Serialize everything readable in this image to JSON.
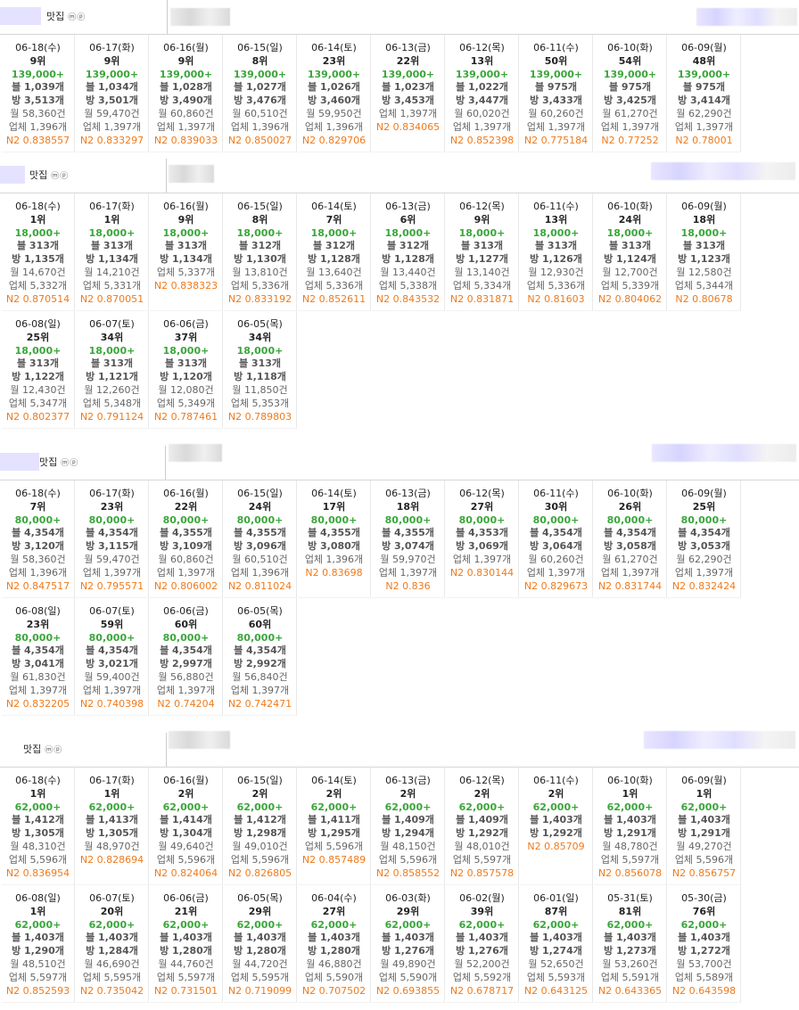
{
  "label_mark": "ⓜⓟ",
  "sections": [
    {
      "name": "맛집",
      "rows": [
        [
          {
            "d": "06-18(수)",
            "r": "9위",
            "p": "139,000+",
            "b": "블 1,039개",
            "v": "방 3,513개",
            "w": "월 58,360건",
            "u": "업체 1,396개",
            "n": "N2 0.838557"
          },
          {
            "d": "06-17(화)",
            "r": "9위",
            "p": "139,000+",
            "b": "블 1,034개",
            "v": "방 3,501개",
            "w": "월 59,470건",
            "u": "업체 1,397개",
            "n": "N2 0.833297"
          },
          {
            "d": "06-16(월)",
            "r": "9위",
            "p": "139,000+",
            "b": "블 1,028개",
            "v": "방 3,490개",
            "w": "월 60,860건",
            "u": "업체 1,397개",
            "n": "N2 0.839033"
          },
          {
            "d": "06-15(일)",
            "r": "8위",
            "p": "139,000+",
            "b": "블 1,027개",
            "v": "방 3,476개",
            "w": "월 60,510건",
            "u": "업체 1,396개",
            "n": "N2 0.850027"
          },
          {
            "d": "06-14(토)",
            "r": "23위",
            "p": "139,000+",
            "b": "블 1,026개",
            "v": "방 3,460개",
            "w": "월 59,950건",
            "u": "업체 1,396개",
            "n": "N2 0.829706"
          },
          {
            "d": "06-13(금)",
            "r": "22위",
            "p": "139,000+",
            "b": "블 1,023개",
            "v": "방 3,453개",
            "w": "업체 1,397개",
            "u": "N2 0.834065",
            "n": ""
          },
          {
            "d": "06-12(목)",
            "r": "13위",
            "p": "139,000+",
            "b": "블 1,022개",
            "v": "방 3,447개",
            "w": "월 60,020건",
            "u": "업체 1,397개",
            "n": "N2 0.852398"
          },
          {
            "d": "06-11(수)",
            "r": "50위",
            "p": "139,000+",
            "b": "블 975개",
            "v": "방 3,433개",
            "w": "월 60,260건",
            "u": "업체 1,397개",
            "n": "N2 0.775184"
          },
          {
            "d": "06-10(화)",
            "r": "54위",
            "p": "139,000+",
            "b": "블 975개",
            "v": "방 3,425개",
            "w": "월 61,270건",
            "u": "업체 1,397개",
            "n": "N2 0.77252"
          },
          {
            "d": "06-09(월)",
            "r": "48위",
            "p": "139,000+",
            "b": "블 975개",
            "v": "방 3,414개",
            "w": "월 62,290건",
            "u": "업체 1,397개",
            "n": "N2 0.78001"
          }
        ]
      ]
    },
    {
      "name": "맛집",
      "rows": [
        [
          {
            "d": "06-18(수)",
            "r": "1위",
            "p": "18,000+",
            "b": "블 313개",
            "v": "방 1,135개",
            "w": "월 14,670건",
            "u": "업체 5,332개",
            "n": "N2 0.870514"
          },
          {
            "d": "06-17(화)",
            "r": "1위",
            "p": "18,000+",
            "b": "블 313개",
            "v": "방 1,134개",
            "w": "월 14,210건",
            "u": "업체 5,331개",
            "n": "N2 0.870051"
          },
          {
            "d": "06-16(월)",
            "r": "9위",
            "p": "18,000+",
            "b": "블 313개",
            "v": "방 1,134개",
            "w": "업체 5,337개",
            "u": "N2 0.838323",
            "n": ""
          },
          {
            "d": "06-15(일)",
            "r": "8위",
            "p": "18,000+",
            "b": "블 312개",
            "v": "방 1,130개",
            "w": "월 13,810건",
            "u": "업체 5,336개",
            "n": "N2 0.833192"
          },
          {
            "d": "06-14(토)",
            "r": "7위",
            "p": "18,000+",
            "b": "블 312개",
            "v": "방 1,128개",
            "w": "월 13,640건",
            "u": "업체 5,336개",
            "n": "N2 0.852611"
          },
          {
            "d": "06-13(금)",
            "r": "6위",
            "p": "18,000+",
            "b": "블 312개",
            "v": "방 1,128개",
            "w": "월 13,440건",
            "u": "업체 5,338개",
            "n": "N2 0.843532"
          },
          {
            "d": "06-12(목)",
            "r": "9위",
            "p": "18,000+",
            "b": "블 313개",
            "v": "방 1,127개",
            "w": "월 13,140건",
            "u": "업체 5,334개",
            "n": "N2 0.831871"
          },
          {
            "d": "06-11(수)",
            "r": "13위",
            "p": "18,000+",
            "b": "블 313개",
            "v": "방 1,126개",
            "w": "월 12,930건",
            "u": "업체 5,336개",
            "n": "N2 0.81603"
          },
          {
            "d": "06-10(화)",
            "r": "24위",
            "p": "18,000+",
            "b": "블 313개",
            "v": "방 1,124개",
            "w": "월 12,700건",
            "u": "업체 5,339개",
            "n": "N2 0.804062"
          },
          {
            "d": "06-09(월)",
            "r": "18위",
            "p": "18,000+",
            "b": "블 313개",
            "v": "방 1,123개",
            "w": "월 12,580건",
            "u": "업체 5,344개",
            "n": "N2 0.80678"
          }
        ],
        [
          {
            "d": "06-08(일)",
            "r": "25위",
            "p": "18,000+",
            "b": "블 313개",
            "v": "방 1,122개",
            "w": "월 12,430건",
            "u": "업체 5,347개",
            "n": "N2 0.802377"
          },
          {
            "d": "06-07(토)",
            "r": "34위",
            "p": "18,000+",
            "b": "블 313개",
            "v": "방 1,121개",
            "w": "월 12,260건",
            "u": "업체 5,348개",
            "n": "N2 0.791124"
          },
          {
            "d": "06-06(금)",
            "r": "37위",
            "p": "18,000+",
            "b": "블 313개",
            "v": "방 1,120개",
            "w": "월 12,080건",
            "u": "업체 5,349개",
            "n": "N2 0.787461"
          },
          {
            "d": "06-05(목)",
            "r": "34위",
            "p": "18,000+",
            "b": "블 313개",
            "v": "방 1,118개",
            "w": "월 11,850건",
            "u": "업체 5,353개",
            "n": "N2 0.789803"
          }
        ]
      ]
    },
    {
      "name": "맛집",
      "rows": [
        [
          {
            "d": "06-18(수)",
            "r": "7위",
            "p": "80,000+",
            "b": "블 4,354개",
            "v": "방 3,120개",
            "w": "월 58,360건",
            "u": "업체 1,396개",
            "n": "N2 0.847517"
          },
          {
            "d": "06-17(화)",
            "r": "23위",
            "p": "80,000+",
            "b": "블 4,354개",
            "v": "방 3,115개",
            "w": "월 59,470건",
            "u": "업체 1,397개",
            "n": "N2 0.795571"
          },
          {
            "d": "06-16(월)",
            "r": "22위",
            "p": "80,000+",
            "b": "블 4,355개",
            "v": "방 3,109개",
            "w": "월 60,860건",
            "u": "업체 1,397개",
            "n": "N2 0.806002"
          },
          {
            "d": "06-15(일)",
            "r": "24위",
            "p": "80,000+",
            "b": "블 4,355개",
            "v": "방 3,096개",
            "w": "월 60,510건",
            "u": "업체 1,396개",
            "n": "N2 0.811024"
          },
          {
            "d": "06-14(토)",
            "r": "17위",
            "p": "80,000+",
            "b": "블 4,355개",
            "v": "방 3,080개",
            "w": "업체 1,396개",
            "u": "N2 0.83698",
            "n": ""
          },
          {
            "d": "06-13(금)",
            "r": "18위",
            "p": "80,000+",
            "b": "블 4,355개",
            "v": "방 3,074개",
            "w": "월 59,970건",
            "u": "업체 1,397개",
            "n": "N2 0.836"
          },
          {
            "d": "06-12(목)",
            "r": "27위",
            "p": "80,000+",
            "b": "블 4,353개",
            "v": "방 3,069개",
            "w": "업체 1,397개",
            "u": "N2 0.830144",
            "n": ""
          },
          {
            "d": "06-11(수)",
            "r": "30위",
            "p": "80,000+",
            "b": "블 4,354개",
            "v": "방 3,064개",
            "w": "월 60,260건",
            "u": "업체 1,397개",
            "n": "N2 0.829673"
          },
          {
            "d": "06-10(화)",
            "r": "26위",
            "p": "80,000+",
            "b": "블 4,354개",
            "v": "방 3,058개",
            "w": "월 61,270건",
            "u": "업체 1,397개",
            "n": "N2 0.831744"
          },
          {
            "d": "06-09(월)",
            "r": "25위",
            "p": "80,000+",
            "b": "블 4,354개",
            "v": "방 3,053개",
            "w": "월 62,290건",
            "u": "업체 1,397개",
            "n": "N2 0.832424"
          }
        ],
        [
          {
            "d": "06-08(일)",
            "r": "23위",
            "p": "80,000+",
            "b": "블 4,354개",
            "v": "방 3,041개",
            "w": "월 61,830건",
            "u": "업체 1,397개",
            "n": "N2 0.832205"
          },
          {
            "d": "06-07(토)",
            "r": "59위",
            "p": "80,000+",
            "b": "블 4,354개",
            "v": "방 3,021개",
            "w": "월 59,400건",
            "u": "업체 1,397개",
            "n": "N2 0.740398"
          },
          {
            "d": "06-06(금)",
            "r": "60위",
            "p": "80,000+",
            "b": "블 4,354개",
            "v": "방 2,997개",
            "w": "월 56,880건",
            "u": "업체 1,397개",
            "n": "N2 0.74204"
          },
          {
            "d": "06-05(목)",
            "r": "60위",
            "p": "80,000+",
            "b": "블 4,354개",
            "v": "방 2,992개",
            "w": "월 56,840건",
            "u": "업체 1,397개",
            "n": "N2 0.742471"
          }
        ]
      ]
    },
    {
      "name": "맛집",
      "rows": [
        [
          {
            "d": "06-18(수)",
            "r": "1위",
            "p": "62,000+",
            "b": "블 1,412개",
            "v": "방 1,305개",
            "w": "월 48,310건",
            "u": "업체 5,596개",
            "n": "N2 0.836954"
          },
          {
            "d": "06-17(화)",
            "r": "1위",
            "p": "62,000+",
            "b": "블 1,413개",
            "v": "방 1,305개",
            "w": "월 48,970건",
            "u": "N2 0.828694",
            "n": ""
          },
          {
            "d": "06-16(월)",
            "r": "2위",
            "p": "62,000+",
            "b": "블 1,414개",
            "v": "방 1,304개",
            "w": "월 49,640건",
            "u": "업체 5,596개",
            "n": "N2 0.824064"
          },
          {
            "d": "06-15(일)",
            "r": "2위",
            "p": "62,000+",
            "b": "블 1,412개",
            "v": "방 1,298개",
            "w": "월 49,010건",
            "u": "업체 5,596개",
            "n": "N2 0.826805"
          },
          {
            "d": "06-14(토)",
            "r": "2위",
            "p": "62,000+",
            "b": "블 1,411개",
            "v": "방 1,295개",
            "w": "업체 5,596개",
            "u": "N2 0.857489",
            "n": ""
          },
          {
            "d": "06-13(금)",
            "r": "2위",
            "p": "62,000+",
            "b": "블 1,409개",
            "v": "방 1,294개",
            "w": "월 48,150건",
            "u": "업체 5,596개",
            "n": "N2 0.858552"
          },
          {
            "d": "06-12(목)",
            "r": "2위",
            "p": "62,000+",
            "b": "블 1,409개",
            "v": "방 1,292개",
            "w": "월 48,010건",
            "u": "업체 5,597개",
            "n": "N2 0.857578"
          },
          {
            "d": "06-11(수)",
            "r": "2위",
            "p": "62,000+",
            "b": "블 1,403개",
            "v": "방 1,292개",
            "w": "N2 0.85709",
            "u": "",
            "n": ""
          },
          {
            "d": "06-10(화)",
            "r": "1위",
            "p": "62,000+",
            "b": "블 1,403개",
            "v": "방 1,291개",
            "w": "월 48,780건",
            "u": "업체 5,597개",
            "n": "N2 0.856078"
          },
          {
            "d": "06-09(월)",
            "r": "1위",
            "p": "62,000+",
            "b": "블 1,403개",
            "v": "방 1,291개",
            "w": "월 49,270건",
            "u": "업체 5,596개",
            "n": "N2 0.856757"
          }
        ],
        [
          {
            "d": "06-08(일)",
            "r": "1위",
            "p": "62,000+",
            "b": "블 1,403개",
            "v": "방 1,290개",
            "w": "월 48,510건",
            "u": "업체 5,597개",
            "n": "N2 0.852593"
          },
          {
            "d": "06-07(토)",
            "r": "20위",
            "p": "62,000+",
            "b": "블 1,403개",
            "v": "방 1,284개",
            "w": "월 46,690건",
            "u": "업체 5,595개",
            "n": "N2 0.735042"
          },
          {
            "d": "06-06(금)",
            "r": "21위",
            "p": "62,000+",
            "b": "블 1,403개",
            "v": "방 1,280개",
            "w": "월 44,760건",
            "u": "업체 5,597개",
            "n": "N2 0.731501"
          },
          {
            "d": "06-05(목)",
            "r": "29위",
            "p": "62,000+",
            "b": "블 1,403개",
            "v": "방 1,280개",
            "w": "월 44,720건",
            "u": "업체 5,595개",
            "n": "N2 0.719099"
          },
          {
            "d": "06-04(수)",
            "r": "27위",
            "p": "62,000+",
            "b": "블 1,403개",
            "v": "방 1,280개",
            "w": "월 46,880건",
            "u": "업체 5,590개",
            "n": "N2 0.707502"
          },
          {
            "d": "06-03(화)",
            "r": "29위",
            "p": "62,000+",
            "b": "블 1,403개",
            "v": "방 1,276개",
            "w": "월 49,890건",
            "u": "업체 5,590개",
            "n": "N2 0.693855"
          },
          {
            "d": "06-02(월)",
            "r": "39위",
            "p": "62,000+",
            "b": "블 1,403개",
            "v": "방 1,276개",
            "w": "월 52,200건",
            "u": "업체 5,592개",
            "n": "N2 0.678717"
          },
          {
            "d": "06-01(일)",
            "r": "87위",
            "p": "62,000+",
            "b": "블 1,403개",
            "v": "방 1,274개",
            "w": "월 52,650건",
            "u": "업체 5,593개",
            "n": "N2 0.643125"
          },
          {
            "d": "05-31(토)",
            "r": "81위",
            "p": "62,000+",
            "b": "블 1,403개",
            "v": "방 1,273개",
            "w": "월 53,260건",
            "u": "업체 5,591개",
            "n": "N2 0.643365"
          },
          {
            "d": "05-30(금)",
            "r": "76위",
            "p": "62,000+",
            "b": "블 1,403개",
            "v": "방 1,272개",
            "w": "월 53,700건",
            "u": "업체 5,589개",
            "n": "N2 0.643598"
          }
        ]
      ]
    }
  ]
}
